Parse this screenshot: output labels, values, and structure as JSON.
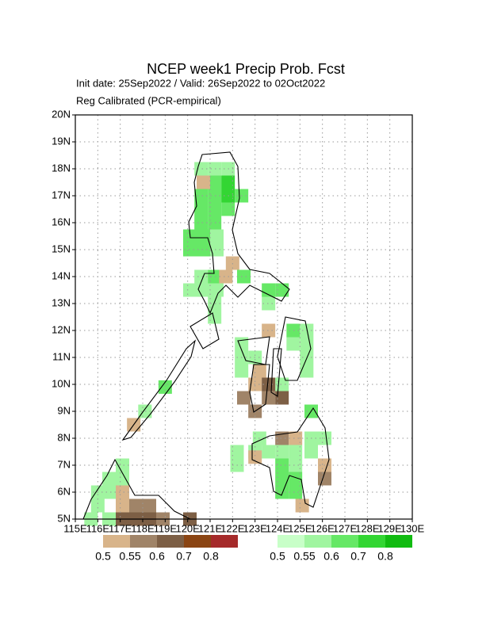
{
  "chart_data": {
    "type": "grid_map",
    "title": "NCEP week1 Precip Prob. Fcst",
    "subtitle": "Init date: 25Sep2022 / Valid: 26Sep2022 to 02Oct2022",
    "method": "Reg Calibrated (PCR-empirical)",
    "xlim": [
      115,
      130
    ],
    "ylim": [
      5,
      20
    ],
    "xticks": [
      {
        "value": 115,
        "label": "115E"
      },
      {
        "value": 116,
        "label": "116E"
      },
      {
        "value": 117,
        "label": "117E"
      },
      {
        "value": 118,
        "label": "118E"
      },
      {
        "value": 119,
        "label": "119E"
      },
      {
        "value": 120,
        "label": "120E"
      },
      {
        "value": 121,
        "label": "121E"
      },
      {
        "value": 122,
        "label": "122E"
      },
      {
        "value": 123,
        "label": "123E"
      },
      {
        "value": 124,
        "label": "124E"
      },
      {
        "value": 125,
        "label": "125E"
      },
      {
        "value": 126,
        "label": "126E"
      },
      {
        "value": 127,
        "label": "127E"
      },
      {
        "value": 128,
        "label": "128E"
      },
      {
        "value": 129,
        "label": "129E"
      },
      {
        "value": 130,
        "label": "130E"
      }
    ],
    "yticks": [
      {
        "value": 5,
        "label": "5N"
      },
      {
        "value": 6,
        "label": "6N"
      },
      {
        "value": 7,
        "label": "7N"
      },
      {
        "value": 8,
        "label": "8N"
      },
      {
        "value": 9,
        "label": "9N"
      },
      {
        "value": 10,
        "label": "10N"
      },
      {
        "value": 11,
        "label": "11N"
      },
      {
        "value": 12,
        "label": "12N"
      },
      {
        "value": 13,
        "label": "13N"
      },
      {
        "value": 14,
        "label": "14N"
      },
      {
        "value": 15,
        "label": "15N"
      },
      {
        "value": 16,
        "label": "16N"
      },
      {
        "value": 17,
        "label": "17N"
      },
      {
        "value": 18,
        "label": "18N"
      },
      {
        "value": 19,
        "label": "19N"
      },
      {
        "value": 20,
        "label": "20N"
      }
    ],
    "grid": true,
    "levels": [
      0.5,
      0.55,
      0.6,
      0.7,
      0.8
    ],
    "below_colors": [
      "#d8b48a",
      "#a08468",
      "#7d5f45",
      "#8b4513",
      "#a52a2a"
    ],
    "above_colors": [
      "#c8ffc8",
      "#a0f5a0",
      "#66e866",
      "#33d633",
      "#11bb11"
    ],
    "above": [
      [
        120.6,
        18,
        0.55
      ],
      [
        121.2,
        18,
        0.55
      ],
      [
        121.8,
        18,
        0.55
      ],
      [
        121.2,
        17.5,
        0.6
      ],
      [
        121.8,
        17.5,
        0.7
      ],
      [
        120.6,
        17,
        0.6
      ],
      [
        121.2,
        17,
        0.6
      ],
      [
        121.8,
        17,
        0.7
      ],
      [
        122.4,
        17,
        0.6
      ],
      [
        120.6,
        16.5,
        0.6
      ],
      [
        121.2,
        16.5,
        0.6
      ],
      [
        121.8,
        16.5,
        0.6
      ],
      [
        120.6,
        16,
        0.6
      ],
      [
        121.2,
        16,
        0.6
      ],
      [
        120.1,
        15.5,
        0.6
      ],
      [
        120.7,
        15.5,
        0.6
      ],
      [
        121.3,
        15.5,
        0.55
      ],
      [
        120.1,
        15,
        0.6
      ],
      [
        120.7,
        15,
        0.6
      ],
      [
        121.3,
        15,
        0.55
      ],
      [
        120.6,
        14,
        0.55
      ],
      [
        121.2,
        14,
        0.6
      ],
      [
        122.5,
        14,
        0.6
      ],
      [
        120.1,
        13.5,
        0.55
      ],
      [
        120.7,
        13.5,
        0.55
      ],
      [
        121.3,
        13.5,
        0.55
      ],
      [
        123.6,
        13.5,
        0.6
      ],
      [
        124.2,
        13.5,
        0.6
      ],
      [
        123.6,
        13,
        0.55
      ],
      [
        121.2,
        13,
        0.55
      ],
      [
        121.2,
        12.5,
        0.55
      ],
      [
        124.7,
        12,
        0.6
      ],
      [
        125.3,
        12,
        0.55
      ],
      [
        122.4,
        11.5,
        0.55
      ],
      [
        124.7,
        11.5,
        0.55
      ],
      [
        125.3,
        11.5,
        0.55
      ],
      [
        122.4,
        11,
        0.55
      ],
      [
        123,
        11,
        0.55
      ],
      [
        125.3,
        11,
        0.55
      ],
      [
        122.4,
        10.5,
        0.55
      ],
      [
        125.3,
        10.5,
        0.55
      ],
      [
        124.2,
        10,
        0.55
      ],
      [
        119,
        9.9,
        0.6
      ],
      [
        118.1,
        9,
        0.55
      ],
      [
        125.5,
        9,
        0.6
      ],
      [
        123.2,
        8,
        0.55
      ],
      [
        125.5,
        8,
        0.55
      ],
      [
        126.1,
        8,
        0.55
      ],
      [
        122.2,
        7.5,
        0.55
      ],
      [
        123,
        7.5,
        0.55
      ],
      [
        123.6,
        7.5,
        0.55
      ],
      [
        124.2,
        7.5,
        0.55
      ],
      [
        124.8,
        7.5,
        0.55
      ],
      [
        125.5,
        7.5,
        0.55
      ],
      [
        122.2,
        7,
        0.55
      ],
      [
        124.2,
        7,
        0.6
      ],
      [
        124.8,
        7,
        0.55
      ],
      [
        124.2,
        6.5,
        0.6
      ],
      [
        124.8,
        6.5,
        0.6
      ],
      [
        124.2,
        6,
        0.6
      ],
      [
        124.8,
        6,
        0.6
      ],
      [
        117.1,
        7,
        0.55
      ],
      [
        116.5,
        6.5,
        0.55
      ],
      [
        117.1,
        6.5,
        0.55
      ],
      [
        116,
        6,
        0.55
      ],
      [
        116.5,
        6,
        0.55
      ],
      [
        116,
        5.5,
        0.55
      ],
      [
        115.7,
        5,
        0.55
      ],
      [
        116.5,
        5,
        0.55
      ]
    ],
    "below": [
      [
        120.7,
        17.5,
        0.5
      ],
      [
        122,
        14.5,
        0.5
      ],
      [
        121.7,
        14,
        0.5
      ],
      [
        123.6,
        12,
        0.5
      ],
      [
        123.2,
        10.5,
        0.5
      ],
      [
        123,
        10,
        0.5
      ],
      [
        123.6,
        10,
        0.6
      ],
      [
        122.5,
        9.5,
        0.55
      ],
      [
        123.6,
        9.5,
        0.55
      ],
      [
        124.2,
        9.5,
        0.6
      ],
      [
        123,
        9,
        0.55
      ],
      [
        117.6,
        8.5,
        0.5
      ],
      [
        124.2,
        8,
        0.55
      ],
      [
        124.8,
        8,
        0.5
      ],
      [
        123,
        7.3,
        0.5
      ],
      [
        126.1,
        7,
        0.5
      ],
      [
        126.1,
        6.5,
        0.55
      ],
      [
        125.1,
        5.5,
        0.5
      ],
      [
        117.1,
        6,
        0.5
      ],
      [
        117.1,
        5.5,
        0.5
      ],
      [
        117.7,
        5.5,
        0.55
      ],
      [
        118.3,
        5.5,
        0.55
      ],
      [
        117.1,
        5,
        0.6
      ],
      [
        117.7,
        5,
        0.6
      ],
      [
        118.3,
        5,
        0.6
      ],
      [
        118.9,
        5,
        0.55
      ],
      [
        120.1,
        5,
        0.6
      ]
    ]
  }
}
